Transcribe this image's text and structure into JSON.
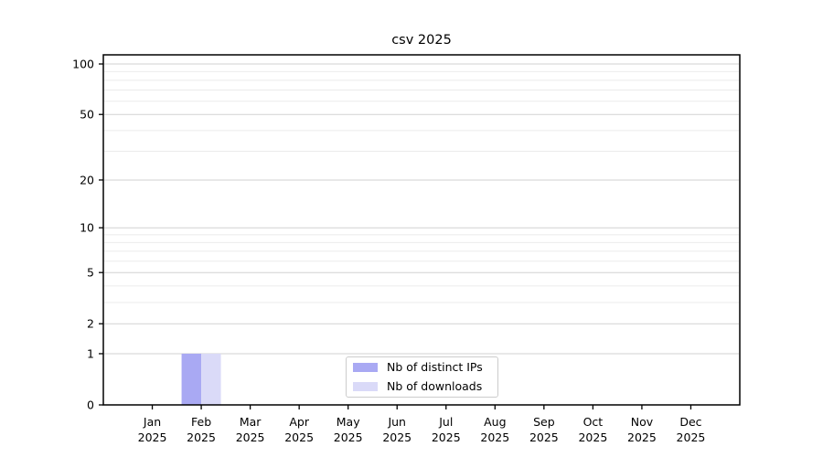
{
  "chart_data": {
    "type": "bar",
    "title": "csv 2025",
    "categories": [
      {
        "month": "Jan",
        "year": "2025"
      },
      {
        "month": "Feb",
        "year": "2025"
      },
      {
        "month": "Mar",
        "year": "2025"
      },
      {
        "month": "Apr",
        "year": "2025"
      },
      {
        "month": "May",
        "year": "2025"
      },
      {
        "month": "Jun",
        "year": "2025"
      },
      {
        "month": "Jul",
        "year": "2025"
      },
      {
        "month": "Aug",
        "year": "2025"
      },
      {
        "month": "Sep",
        "year": "2025"
      },
      {
        "month": "Oct",
        "year": "2025"
      },
      {
        "month": "Nov",
        "year": "2025"
      },
      {
        "month": "Dec",
        "year": "2025"
      }
    ],
    "series": [
      {
        "name": "Nb of distinct IPs",
        "color": "#a9a9f3",
        "values": [
          0,
          1,
          0,
          0,
          0,
          0,
          0,
          0,
          0,
          0,
          0,
          0
        ]
      },
      {
        "name": "Nb of downloads",
        "color": "#dadaf8",
        "values": [
          0,
          1,
          0,
          0,
          0,
          0,
          0,
          0,
          0,
          0,
          0,
          0
        ]
      }
    ],
    "y_axis": {
      "scale": "log1p",
      "ticks": [
        0,
        1,
        2,
        5,
        10,
        20,
        50,
        100
      ],
      "tick_labels": [
        "0",
        "1",
        "2",
        "5",
        "10",
        "20",
        "50",
        "100"
      ],
      "minor_ticks": [
        3,
        4,
        6,
        7,
        8,
        9,
        30,
        40,
        60,
        70,
        80,
        90
      ],
      "ylim": [
        0,
        113
      ]
    },
    "grid": {
      "major_color": "#d2d2d2",
      "minor_color": "#ebebeb"
    },
    "legend": {
      "location": "lower center",
      "border_color": "#cccccc"
    }
  }
}
